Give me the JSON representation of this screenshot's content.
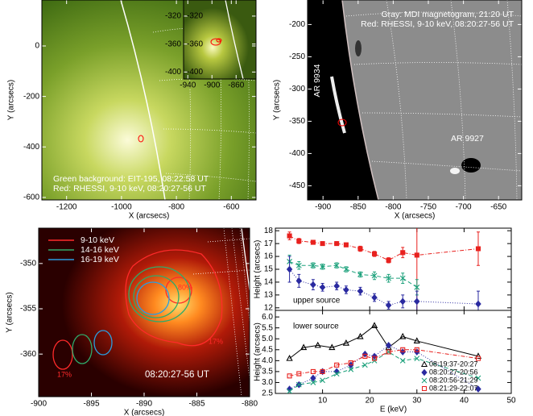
{
  "chart_data": [
    {
      "type": "image",
      "xlabel": "X (arcsecs)",
      "ylabel": "Y (arcsecs)",
      "xlim": [
        -1290,
        -510
      ],
      "ylim": [
        -610,
        182
      ],
      "xticks": [
        -1200,
        -1000,
        -800,
        -600
      ],
      "yticks": [
        -600,
        -400,
        -200,
        0
      ],
      "annotations": [
        "Green background: EIT-195, 08:22:58 UT",
        "Red: RHESSI, 9-10 keV, 08:20:27-56 UT"
      ],
      "inset": {
        "xlim": [
          -947,
          -827
        ],
        "ylim": [
          -410,
          -297
        ],
        "xticks": [
          -940,
          -900,
          -860
        ],
        "yticks": [
          -400,
          -360,
          -320
        ]
      }
    },
    {
      "type": "image",
      "xlabel": "X (arcsecs)",
      "ylabel": "Y (arcsecs)",
      "xlim": [
        -922,
        -617
      ],
      "ylim": [
        -472,
        -162
      ],
      "xticks": [
        -900,
        -850,
        -800,
        -750,
        -700,
        -650
      ],
      "yticks": [
        -450,
        -400,
        -350,
        -300,
        -250,
        -200
      ],
      "annotations": [
        "Gray: MDI magnetogram, 21:20 UT",
        "Red: RHESSI, 9-10 keV, 08:20:27-56 UT",
        "AR 9934",
        "AR 9927"
      ]
    },
    {
      "type": "contour",
      "xlabel": "X (arcsecs)",
      "ylabel": "Y (arcsecs)",
      "xlim": [
        -900,
        -880
      ],
      "ylim": [
        -364.7,
        -346.1
      ],
      "xticks": [
        -900,
        -895,
        -890,
        -885,
        -880
      ],
      "yticks": [
        -360,
        -355,
        -350
      ],
      "series": [
        {
          "name": "9-10 keV",
          "color": "#ff2a2a"
        },
        {
          "name": "14-16 keV",
          "color": "#2faa6a"
        },
        {
          "name": "16-19 keV",
          "color": "#2a9ee0"
        }
      ],
      "annotations": [
        "80%",
        "17%",
        "17%",
        "08:20:27-56 UT"
      ]
    },
    {
      "type": "line",
      "ylabel": "Height (arcsecs)",
      "xlim": [
        0,
        50
      ],
      "ylim": [
        11.8,
        18.2
      ],
      "yticks": [
        12,
        13,
        14,
        15,
        16,
        17,
        18
      ],
      "annotations": [
        "upper source"
      ],
      "series": [
        {
          "color": "#e8211e",
          "marker": "square",
          "open": false,
          "linestyle": "dashdot",
          "x": [
            3,
            5,
            8,
            10,
            13,
            15,
            18,
            21,
            24,
            27,
            30,
            43
          ],
          "values": [
            17.6,
            17.2,
            17.1,
            17.0,
            17.0,
            16.9,
            16.6,
            16.2,
            15.7,
            16.3,
            16.1,
            16.6
          ],
          "errors": [
            0.3,
            0.2,
            0.15,
            0.15,
            0.15,
            0.15,
            0.2,
            0.2,
            0.2,
            0.4,
            4.5,
            1.3
          ]
        },
        {
          "color": "#1aa07a",
          "marker": "x",
          "open": false,
          "linestyle": "dashed",
          "x": [
            3,
            5,
            8,
            10,
            13,
            15,
            18,
            21,
            24,
            27,
            30
          ],
          "values": [
            15.6,
            15.3,
            15.3,
            15.2,
            15.3,
            15.0,
            14.6,
            14.5,
            14.3,
            14.3,
            13.6
          ],
          "errors": [
            0.5,
            0.3,
            0.2,
            0.2,
            0.2,
            0.2,
            0.2,
            0.3,
            0.3,
            0.4,
            0.6
          ]
        },
        {
          "color": "#2a2aa0",
          "marker": "diamond",
          "open": false,
          "linestyle": "dotted",
          "x": [
            3,
            5,
            8,
            10,
            13,
            15,
            18,
            21,
            24,
            27,
            30,
            43
          ],
          "values": [
            15.0,
            14.1,
            13.8,
            13.6,
            13.7,
            13.4,
            13.3,
            12.8,
            12.2,
            12.5,
            12.5,
            12.3
          ],
          "errors": [
            1.0,
            0.5,
            0.4,
            0.3,
            0.3,
            0.3,
            0.3,
            0.3,
            0.3,
            0.5,
            0.8,
            1.0
          ]
        }
      ]
    },
    {
      "type": "line",
      "ylabel": "Height (arcsecs)",
      "xlabel": "E (keV)",
      "xlim": [
        0,
        50
      ],
      "ylim": [
        2.5,
        6.3
      ],
      "xticks": [
        10,
        20,
        30,
        40,
        50
      ],
      "yticks": [
        2.5,
        {
          "value": 3,
          "label": "3.0"
        },
        3.5,
        {
          "value": 4,
          "label": "4.0"
        },
        4.5,
        {
          "value": 5,
          "label": "5.0"
        },
        5.5,
        {
          "value": 6,
          "label": "6.0"
        }
      ],
      "annotations": [
        "lower source"
      ],
      "legend": "lower right",
      "series": [
        {
          "name": "08:19:37-20:27",
          "color": "#000000",
          "marker": "triangle",
          "open": true,
          "linestyle": "solid",
          "x": [
            3,
            6,
            9,
            12,
            15,
            18,
            21,
            24,
            27,
            30,
            43
          ],
          "values": [
            4.1,
            4.6,
            4.7,
            4.6,
            4.8,
            5.1,
            5.6,
            4.6,
            5.1,
            4.9,
            4.2
          ]
        },
        {
          "name": "08:20:27-20:56",
          "color": "#2a2aa0",
          "marker": "diamond",
          "open": false,
          "linestyle": "dotted",
          "x": [
            3,
            5,
            8,
            10,
            13,
            16,
            19,
            21,
            24,
            27,
            30,
            43
          ],
          "values": [
            2.7,
            2.9,
            3.2,
            3.5,
            3.5,
            3.8,
            4.3,
            4.2,
            4.7,
            4.4,
            4.4,
            2.7
          ]
        },
        {
          "name": "08:20:56-21:29",
          "color": "#1aa07a",
          "marker": "x",
          "open": false,
          "linestyle": "dashed",
          "x": [
            3,
            5,
            8,
            10,
            13,
            16,
            19,
            21,
            24,
            27,
            30,
            43
          ],
          "values": [
            2.6,
            2.9,
            3.0,
            3.1,
            3.4,
            3.6,
            3.8,
            4.0,
            4.4,
            4.0,
            4.1,
            3.2
          ]
        },
        {
          "name": "08:21:29-22:07",
          "color": "#e8211e",
          "marker": "square",
          "open": true,
          "linestyle": "dashdot",
          "x": [
            3,
            5,
            8,
            10,
            13,
            16,
            19,
            21,
            24,
            27,
            30,
            43
          ],
          "values": [
            3.3,
            3.4,
            3.5,
            3.5,
            3.8,
            3.9,
            4.2,
            4.1,
            4.4,
            4.5,
            4.5,
            4.1
          ]
        }
      ]
    }
  ]
}
